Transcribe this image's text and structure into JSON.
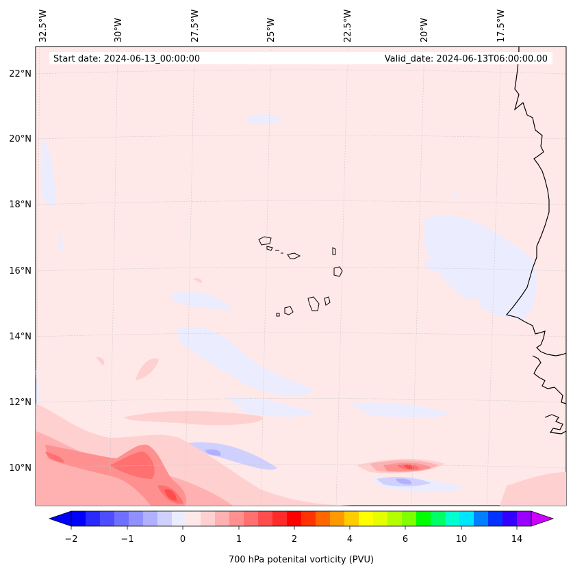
{
  "map": {
    "header": {
      "start_date": "Start date: 2024-06-13_00:00:00",
      "valid_date": "Valid_date: 2024-06-13T06:00:00.00"
    },
    "longitude_labels": [
      "32.5°W",
      "30°W",
      "27.5°W",
      "25°W",
      "22.5°W",
      "20°W",
      "17.5°W"
    ],
    "latitude_labels": [
      "22°N",
      "20°N",
      "18°N",
      "16°N",
      "14°N",
      "12°N",
      "10°N"
    ],
    "background_color": "#ffe8e8",
    "coastline_color": "#000000"
  },
  "colorbar": {
    "label": "700 hPa potenital vorticity (PVU)",
    "tick_labels": [
      "−2",
      "−1",
      "0",
      "1",
      "2",
      "4",
      "6",
      "10",
      "14"
    ],
    "colors": [
      "#0000ff",
      "#2a2aff",
      "#4d4dff",
      "#7070ff",
      "#9090ff",
      "#b0b0ff",
      "#d0d0ff",
      "#ececff",
      "#ffe8e8",
      "#ffd0d0",
      "#ffb0b0",
      "#ff9090",
      "#ff7070",
      "#ff4d4d",
      "#ff2a2a",
      "#ff0000",
      "#ff3300",
      "#ff6600",
      "#ff9900",
      "#ffcc00",
      "#ffff00",
      "#e5ff00",
      "#b3ff00",
      "#80ff00",
      "#00ff00",
      "#00ff66",
      "#00ffcc",
      "#00e5ff",
      "#0080ff",
      "#0033ff",
      "#3300ff",
      "#9900ff"
    ],
    "under_color": "#0000ff",
    "over_color": "#cc00ff"
  }
}
